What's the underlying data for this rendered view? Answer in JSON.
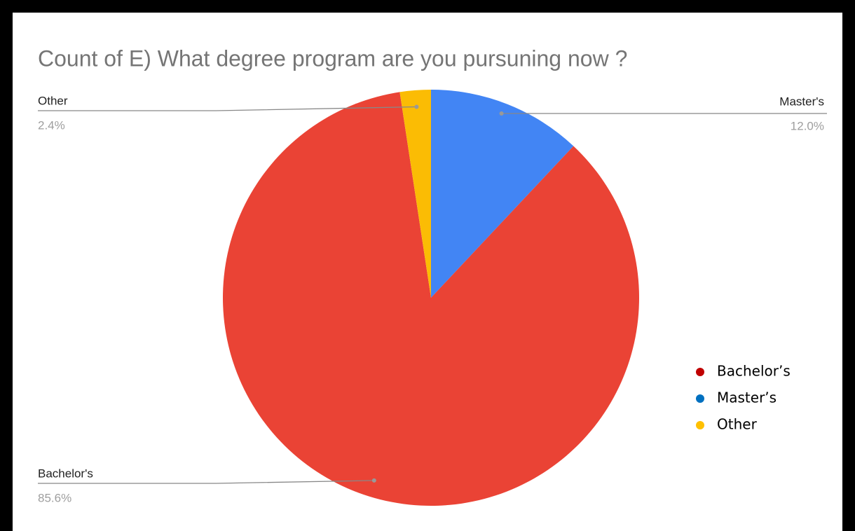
{
  "chart_data": {
    "type": "pie",
    "title": "Count of E) What degree program are you pursuning now ?",
    "categories": [
      "Master's",
      "Bachelor's",
      "Other"
    ],
    "values": [
      12.0,
      85.6,
      2.4
    ],
    "value_labels": [
      "12.0%",
      "85.6%",
      "2.4%"
    ],
    "colors": [
      "#4285f4",
      "#ea4335",
      "#fbbc04"
    ],
    "legend": {
      "position": "right",
      "entries": [
        "Bachelor’s",
        "Master’s",
        "Other"
      ],
      "colors": [
        "#c00000",
        "#0070c0",
        "#ffc000"
      ]
    }
  }
}
